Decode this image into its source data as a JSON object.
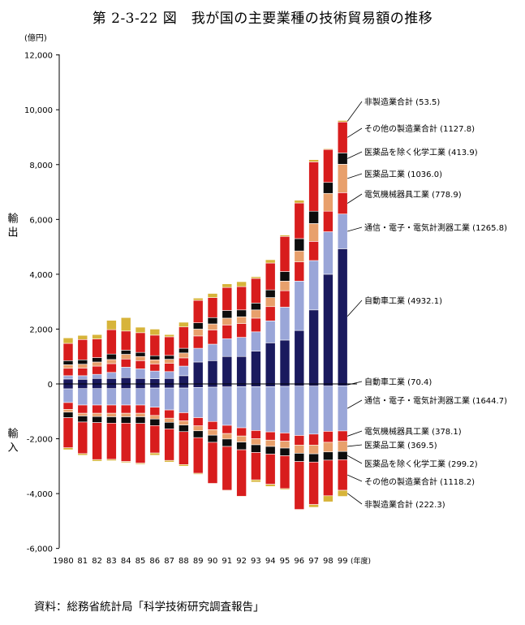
{
  "title": "第 2-3-22 図　我が国の主要業種の技術貿易額の推移",
  "source": "資料：総務省統計局「科学技術研究調査報告」",
  "chart_data": {
    "type": "bar",
    "stacked": true,
    "title": "第 2-3-22 図　我が国の主要業種の技術貿易額の推移",
    "y_unit": "(億円)",
    "x_unit": "(年度)",
    "ylim": [
      -6000,
      12000
    ],
    "yticks": [
      12000,
      10000,
      8000,
      6000,
      4000,
      2000,
      0,
      -2000,
      -4000,
      -6000
    ],
    "ytick_labels": [
      "12,000",
      "10,000",
      "8,000",
      "6,000",
      "4,000",
      "2,000",
      "0",
      "-2,000",
      "-4,000",
      "-6,000"
    ],
    "export_label": "輸出",
    "import_label": "輸入",
    "category_labels": [
      "1980",
      "81",
      "82",
      "83",
      "84",
      "85",
      "86",
      "87",
      "88",
      "89",
      "90",
      "91",
      "92",
      "93",
      "94",
      "95",
      "96",
      "97",
      "98",
      "99"
    ],
    "colors": {
      "自動車工業": "#1a1a5e",
      "通信・電子・電気計測器工業": "#9aa6d8",
      "電気機械器具工業": "#d81d1d",
      "医薬品工業": "#e8a06c",
      "医薬品を除く化学工業": "#0d0d0d",
      "その他の製造業合計": "#d81d1d",
      "非製造業合計": "#d7b43a"
    },
    "exports": [
      {
        "name": "自動車工業",
        "label": "自動車工業 (4932.1)",
        "values": [
          180,
          170,
          200,
          200,
          230,
          200,
          190,
          200,
          300,
          800,
          850,
          1000,
          1000,
          1200,
          1500,
          1600,
          1950,
          2700,
          4000,
          4932
        ]
      },
      {
        "name": "通信・電子・電気計測器工業",
        "label": "通信・電子・電気計測器工業 (1265.8)",
        "values": [
          120,
          130,
          150,
          220,
          380,
          350,
          280,
          250,
          350,
          500,
          600,
          650,
          700,
          700,
          800,
          1200,
          1800,
          1800,
          1550,
          1266
        ]
      },
      {
        "name": "電気機械器具工業",
        "label": "電気機械器具工業 (778.9)",
        "values": [
          270,
          280,
          300,
          320,
          300,
          300,
          260,
          300,
          300,
          450,
          520,
          500,
          500,
          500,
          520,
          600,
          700,
          700,
          750,
          779
        ]
      },
      {
        "name": "医薬品工業",
        "label": "医薬品工業 (1036.0)",
        "values": [
          130,
          140,
          150,
          150,
          170,
          150,
          150,
          150,
          180,
          250,
          220,
          250,
          250,
          300,
          330,
          350,
          400,
          650,
          650,
          1036
        ]
      },
      {
        "name": "医薬品を除く化学工業",
        "label": "医薬品を除く化学工業 (413.9)",
        "values": [
          150,
          160,
          160,
          200,
          150,
          150,
          150,
          140,
          170,
          230,
          230,
          280,
          250,
          250,
          280,
          350,
          450,
          450,
          400,
          414
        ]
      },
      {
        "name": "その他の製造業合計",
        "label": "その他の製造業合計 (1127.8)",
        "values": [
          630,
          740,
          680,
          890,
          700,
          720,
          750,
          680,
          780,
          820,
          730,
          840,
          850,
          900,
          980,
          1280,
          1300,
          1800,
          1200,
          1128
        ]
      },
      {
        "name": "非製造業合計",
        "label": "非製造業合計 (53.5)",
        "values": [
          200,
          150,
          160,
          340,
          490,
          200,
          220,
          80,
          170,
          80,
          150,
          130,
          180,
          60,
          120,
          50,
          100,
          80,
          30,
          54
        ]
      }
    ],
    "imports": [
      {
        "name": "自動車工業",
        "label": "自動車工業 (70.4)",
        "values": [
          -180,
          -170,
          -170,
          -170,
          -170,
          -170,
          -150,
          -150,
          -150,
          -130,
          -120,
          -110,
          -100,
          -100,
          -100,
          -90,
          -80,
          -80,
          -80,
          -70
        ]
      },
      {
        "name": "通信・電子・電気計測器工業",
        "label": "通信・電子・電気計測器工業 (1644.7)",
        "values": [
          -500,
          -600,
          -600,
          -600,
          -600,
          -600,
          -700,
          -800,
          -900,
          -1100,
          -1250,
          -1400,
          -1500,
          -1600,
          -1650,
          -1700,
          -1800,
          -1750,
          -1650,
          -1645
        ]
      },
      {
        "name": "電気機械器具工業",
        "label": "電気機械器具工業 (378.1)",
        "values": [
          -250,
          -300,
          -300,
          -300,
          -300,
          -300,
          -300,
          -300,
          -300,
          -300,
          -300,
          -300,
          -300,
          -300,
          -300,
          -300,
          -350,
          -400,
          -400,
          -378
        ]
      },
      {
        "name": "医薬品工業",
        "label": "医薬品工業 (369.5)",
        "values": [
          -100,
          -100,
          -120,
          -130,
          -130,
          -130,
          -130,
          -150,
          -150,
          -180,
          -200,
          -200,
          -220,
          -220,
          -230,
          -250,
          -300,
          -320,
          -350,
          -370
        ]
      },
      {
        "name": "医薬品を除く化学工業",
        "label": "医薬品を除く化学工業 (299.2)",
        "values": [
          -200,
          -220,
          -220,
          -230,
          -230,
          -240,
          -240,
          -240,
          -240,
          -250,
          -260,
          -270,
          -280,
          -280,
          -280,
          -280,
          -300,
          -300,
          -300,
          -299
        ]
      },
      {
        "name": "その他の製造業合計",
        "label": "その他の製造業合計 (1118.2)",
        "values": [
          -1100,
          -1150,
          -1350,
          -1320,
          -1400,
          -1450,
          -1000,
          -1150,
          -1200,
          -1300,
          -1500,
          -1600,
          -1700,
          -1000,
          -1100,
          -1200,
          -1750,
          -1550,
          -1300,
          -1118
        ]
      },
      {
        "name": "非製造業合計",
        "label": "非製造業合計 (222.3)",
        "values": [
          -70,
          -60,
          -60,
          -50,
          -40,
          -40,
          -80,
          -60,
          -60,
          -40,
          -20,
          -20,
          -20,
          -80,
          -80,
          -40,
          -20,
          -100,
          -220,
          -222
        ]
      }
    ]
  }
}
